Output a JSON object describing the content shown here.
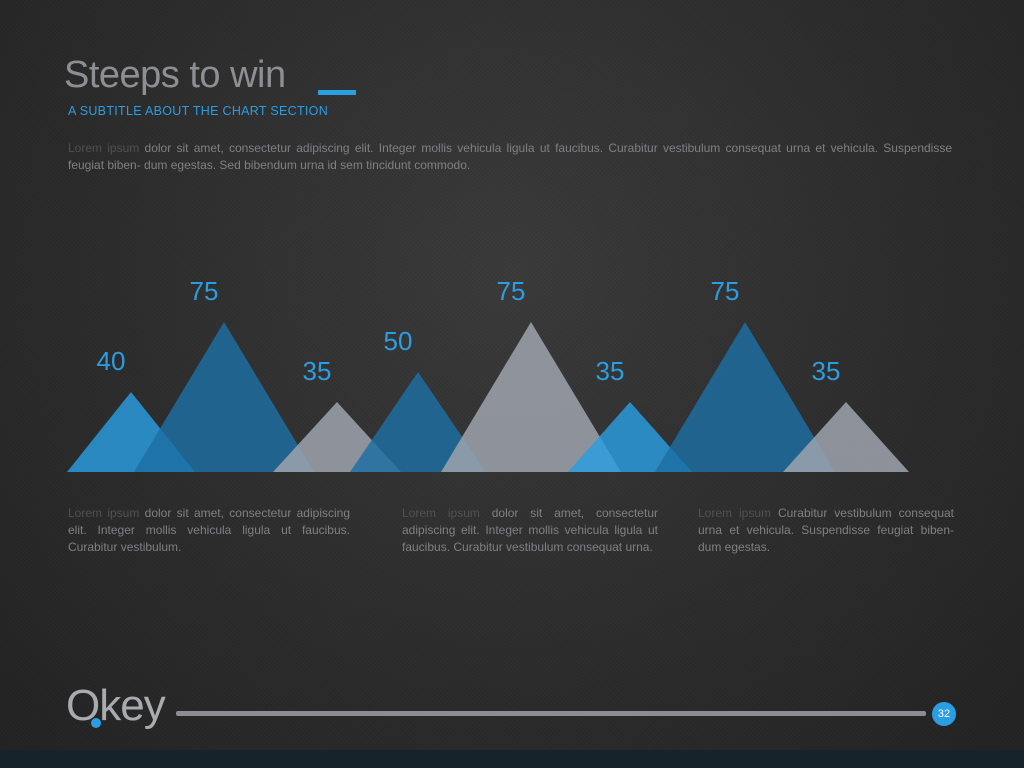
{
  "title": "Steeps to win",
  "subtitle": "A SUBTITLE ABOUT THE CHART SECTION",
  "intro": {
    "highlight": "Lorem ipsum",
    "text": " dolor sit amet, consectetur adipiscing elit. Integer mollis vehicula ligula ut faucibus. Curabitur vestibulum consequat urna et vehicula. Suspendisse feugiat biben- dum egestas. Sed bibendum urna id sem tincidunt commodo."
  },
  "chart_data": {
    "type": "area",
    "ylim": [
      0,
      100
    ],
    "values": [
      40,
      75,
      35,
      50,
      75,
      35,
      75,
      35
    ],
    "labels": [
      "40",
      "75",
      "35",
      "50",
      "75",
      "35",
      "75",
      "35"
    ],
    "colors": [
      "#2b9de2",
      "#1c6fa3",
      "#9ea3ae",
      "#1c6fa3",
      "#9ea3ae",
      "#2b9de2",
      "#1c6fa3",
      "#9ea3ae"
    ],
    "label_color": "#2b9de2"
  },
  "columns": [
    {
      "highlight": "Lorem ipsum",
      "text": " dolor sit amet, consectetur adipiscing elit. Integer mollis vehicula ligula ut faucibus. Curabitur vestibulum."
    },
    {
      "highlight": "Lorem ipsum",
      "text": " dolor sit amet, consectetur adipiscing elit. Integer mollis vehicula ligula ut faucibus. Curabitur vestibulum consequat urna."
    },
    {
      "highlight": "Lorem ipsum",
      "text": " Curabitur vestibulum consequat urna et vehicula. Suspendisse feugiat biben- dum egestas."
    }
  ],
  "logo": {
    "text": "Okey",
    "icon": "drop-dot-icon"
  },
  "page_number": "32",
  "theme": {
    "accent": "#2b9de2",
    "dark_blue": "#1c6fa3",
    "grey": "#9ea3ae"
  }
}
